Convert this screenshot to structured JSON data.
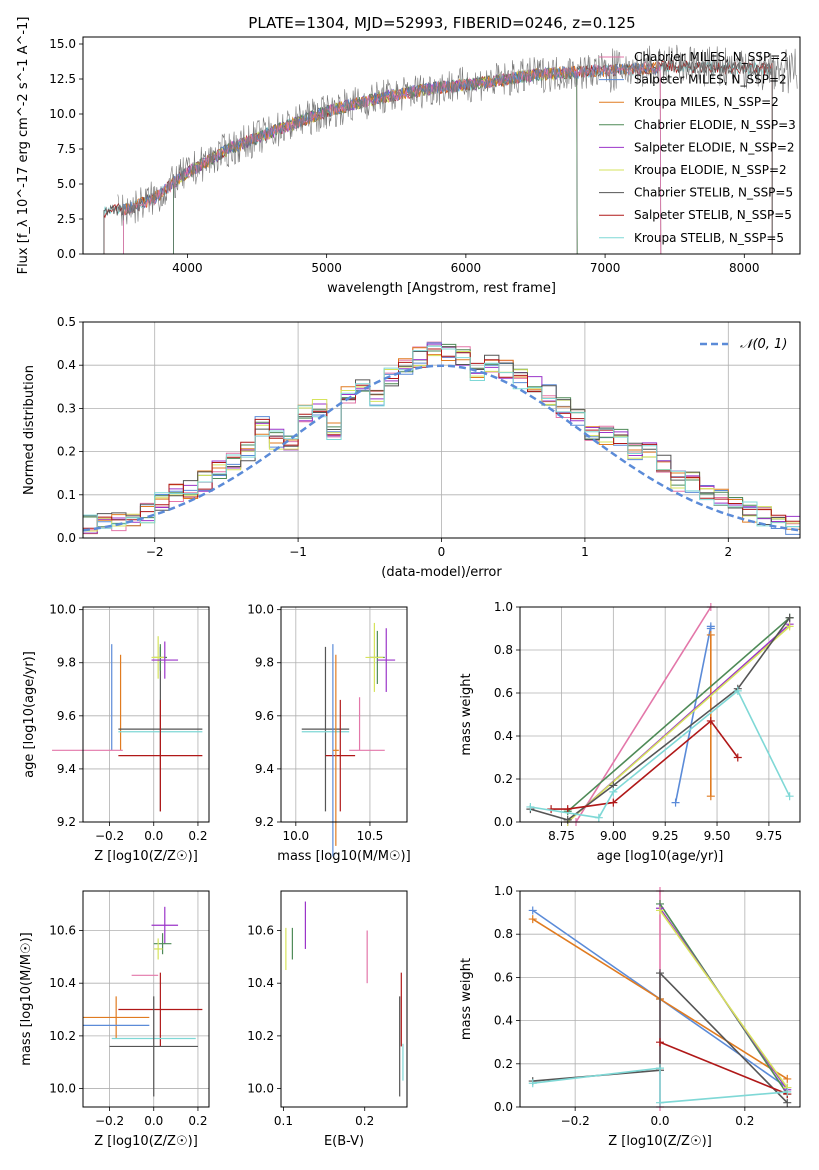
{
  "figure_title": "PLATE=1304, MJD=52993, FIBERID=0246, z=0.125",
  "colors": {
    "Chabrier MILES": "#e377a9",
    "Salpeter MILES": "#5b8bd8",
    "Kroupa MILES": "#e07b20",
    "Chabrier ELODIE": "#4e8a57",
    "Salpeter ELODIE": "#9b35c9",
    "Kroupa ELODIE": "#d6e35c",
    "Chabrier STELIB": "#555555",
    "Salpeter STELIB": "#b01818",
    "Kroupa STELIB": "#7fd8d6",
    "data": "#777777",
    "gauss": "#5b8bd8"
  },
  "chart_data": [
    {
      "type": "line",
      "title": "PLATE=1304, MJD=52993, FIBERID=0246, z=0.125",
      "xlabel": "wavelength [Angstrom, rest frame]",
      "ylabel": "Flux [f_λ 10^-17 erg cm^-2 s^-1 A^-1]",
      "xlim": [
        3250,
        8400
      ],
      "ylim": [
        0,
        15.5
      ],
      "xticks": [
        4000,
        5000,
        6000,
        7000,
        8000
      ],
      "yticks": [
        0.0,
        2.5,
        5.0,
        7.5,
        10.0,
        12.5,
        15.0
      ],
      "grid": false,
      "legend_position": "top-right",
      "legend": [
        "Chabrier MILES, N_SSP=2",
        "Salpeter MILES, N_SSP=2",
        "Kroupa MILES, N_SSP=2",
        "Chabrier ELODIE, N_SSP=3",
        "Salpeter ELODIE, N_SSP=2",
        "Kroupa ELODIE, N_SSP=2",
        "Chabrier STELIB, N_SSP=5",
        "Salpeter STELIB, N_SSP=5",
        "Kroupa STELIB, N_SSP=5"
      ],
      "spectrum_continuum": {
        "x": [
          3400,
          3600,
          3800,
          3950,
          4100,
          4300,
          4600,
          5000,
          5400,
          5800,
          6100,
          6500,
          6800,
          7200,
          7500,
          7800,
          8200
        ],
        "y": [
          3.0,
          3.3,
          4.2,
          5.5,
          6.4,
          7.5,
          8.7,
          10.2,
          11.2,
          11.9,
          12.2,
          12.8,
          13.0,
          13.2,
          13.4,
          13.3,
          13.2
        ]
      }
    },
    {
      "type": "histogram",
      "xlabel": "(data-model)/error",
      "ylabel": "Normed distribution",
      "xlim": [
        -2.5,
        2.5
      ],
      "ylim": [
        0,
        0.5
      ],
      "xticks": [
        -2,
        -1,
        0,
        1,
        2
      ],
      "yticks": [
        0.0,
        0.1,
        0.2,
        0.3,
        0.4,
        0.5
      ],
      "grid": true,
      "legend_position": "top-right",
      "legend": [
        "𝒩(0, 1)"
      ],
      "bin_width": 0.1,
      "bin_start": -2.6,
      "base_hist": [
        0.02,
        0.03,
        0.04,
        0.04,
        0.05,
        0.06,
        0.08,
        0.1,
        0.11,
        0.13,
        0.16,
        0.18,
        0.2,
        0.26,
        0.23,
        0.22,
        0.29,
        0.3,
        0.25,
        0.33,
        0.36,
        0.33,
        0.37,
        0.4,
        0.42,
        0.44,
        0.43,
        0.42,
        0.38,
        0.4,
        0.39,
        0.37,
        0.36,
        0.33,
        0.3,
        0.28,
        0.25,
        0.24,
        0.23,
        0.2,
        0.2,
        0.17,
        0.13,
        0.13,
        0.11,
        0.09,
        0.08,
        0.06,
        0.05,
        0.04,
        0.03,
        0.03
      ]
    },
    {
      "type": "errorbar",
      "xlabel": "Z [log10(Z/Z☉)]",
      "ylabel": "age  [log10(age/yr)]",
      "xlim": [
        -0.32,
        0.25
      ],
      "ylim": [
        9.2,
        10.01
      ],
      "xticks": [
        -0.2,
        0.0,
        0.2
      ],
      "yticks": [
        9.2,
        9.4,
        9.6,
        9.8,
        10.0
      ],
      "grid": true,
      "points": [
        {
          "model": "Salpeter MILES",
          "x": -0.19,
          "xerr": 0.0,
          "y": 9.47,
          "yerr": 0.0,
          "vx": -0.19,
          "vy": [
            9.47,
            9.87
          ]
        },
        {
          "model": "Kroupa MILES",
          "x": -0.15,
          "xerr": 0.0,
          "y": 9.47,
          "yerr": 0.0,
          "vx": -0.15,
          "vy": [
            9.47,
            9.83
          ]
        },
        {
          "model": "Chabrier MILES",
          "x": -0.3,
          "xerr": 0.16,
          "y": 9.47,
          "yerr": 0.0
        },
        {
          "model": "Salpeter MILES",
          "x": -0.13,
          "xerr": 0.0,
          "y": 9.47,
          "yerr": 0.0
        },
        {
          "model": "Chabrier STELIB",
          "x": 0.03,
          "xerr": 0.19,
          "y": 9.55,
          "yerr": 0.31
        },
        {
          "model": "Kroupa STELIB",
          "x": 0.03,
          "xerr": 0.19,
          "y": 9.54,
          "yerr": 0.0
        },
        {
          "model": "Salpeter STELIB",
          "x": 0.03,
          "xerr": 0.19,
          "y": 9.45,
          "yerr": 0.21
        },
        {
          "model": "Chabrier ELODIE",
          "x": 0.03,
          "xerr": 0.03,
          "y": 9.82,
          "yerr": 0.05
        },
        {
          "model": "Kroupa ELODIE",
          "x": 0.02,
          "xerr": 0.03,
          "y": 9.82,
          "yerr": 0.08
        },
        {
          "model": "Salpeter ELODIE",
          "x": 0.05,
          "xerr": 0.06,
          "y": 9.81,
          "yerr": 0.07
        }
      ]
    },
    {
      "type": "errorbar",
      "xlabel": "mass [log10(M/M☉)]",
      "ylabel": "",
      "xlim": [
        9.9,
        10.75
      ],
      "ylim": [
        9.2,
        10.01
      ],
      "xticks": [
        10.0,
        10.5
      ],
      "yticks": [
        9.2,
        9.4,
        9.6,
        9.8,
        10.0
      ],
      "grid": true,
      "points": [
        {
          "model": "Chabrier STELIB",
          "x": 10.2,
          "xerr": 0.16,
          "y": 9.55,
          "yerr": 0.31
        },
        {
          "model": "Kroupa STELIB",
          "x": 10.2,
          "xerr": 0.16,
          "y": 9.54,
          "yerr": 0.0
        },
        {
          "model": "Salpeter STELIB",
          "x": 10.3,
          "xerr": 0.1,
          "y": 9.45,
          "yerr": 0.21
        },
        {
          "model": "Salpeter MILES",
          "x": 10.25,
          "xerr": 0.0,
          "y": 9.47,
          "yerr": 0.4
        },
        {
          "model": "Kroupa MILES",
          "x": 10.27,
          "xerr": 0.02,
          "y": 9.47,
          "yerr": 0.36
        },
        {
          "model": "Chabrier MILES",
          "x": 10.48,
          "xerr": 0.12,
          "y": 9.47,
          "yerr": 0.0
        },
        {
          "model": "Chabrier MILES",
          "x": 10.43,
          "xerr": 0.0,
          "y": 9.57,
          "yerr": 0.1
        },
        {
          "model": "Chabrier ELODIE",
          "x": 10.55,
          "xerr": 0.05,
          "y": 9.82,
          "yerr": 0.1
        },
        {
          "model": "Kroupa ELODIE",
          "x": 10.53,
          "xerr": 0.06,
          "y": 9.82,
          "yerr": 0.13
        },
        {
          "model": "Salpeter ELODIE",
          "x": 10.61,
          "xerr": 0.06,
          "y": 9.81,
          "yerr": 0.12
        }
      ]
    },
    {
      "type": "line",
      "xlabel": "age  [log10(age/yr)]",
      "ylabel": "mass weight",
      "xlim": [
        8.55,
        9.9
      ],
      "ylim": [
        0,
        1.0
      ],
      "xticks": [
        8.75,
        9.0,
        9.25,
        9.5,
        9.75
      ],
      "yticks": [
        0.0,
        0.2,
        0.4,
        0.6,
        0.8,
        1.0
      ],
      "grid": true,
      "series": [
        {
          "model": "Chabrier MILES",
          "x": [
            8.82,
            9.47
          ],
          "y": [
            0.0,
            1.0
          ]
        },
        {
          "model": "Salpeter MILES",
          "x": [
            9.3,
            9.47,
            9.47
          ],
          "y": [
            0.09,
            0.91,
            0.9
          ]
        },
        {
          "model": "Kroupa MILES",
          "x": [
            9.47,
            9.47
          ],
          "y": [
            0.12,
            0.87
          ]
        },
        {
          "model": "Chabrier ELODIE",
          "x": [
            8.78,
            9.85
          ],
          "y": [
            0.05,
            0.95
          ]
        },
        {
          "model": "Salpeter ELODIE",
          "x": [
            8.78,
            9.85
          ],
          "y": [
            0.0,
            0.92
          ]
        },
        {
          "model": "Kroupa ELODIE",
          "x": [
            8.78,
            9.85
          ],
          "y": [
            0.0,
            0.91
          ]
        },
        {
          "model": "Chabrier STELIB",
          "x": [
            8.6,
            8.78,
            9.0,
            9.6,
            9.85
          ],
          "y": [
            0.06,
            0.01,
            0.17,
            0.62,
            0.95
          ]
        },
        {
          "model": "Salpeter STELIB",
          "x": [
            8.7,
            8.78,
            9.0,
            9.47,
            9.6
          ],
          "y": [
            0.06,
            0.06,
            0.09,
            0.47,
            0.3
          ]
        },
        {
          "model": "Kroupa STELIB",
          "x": [
            8.6,
            8.93,
            9.0,
            9.6,
            9.85
          ],
          "y": [
            0.07,
            0.02,
            0.14,
            0.61,
            0.12
          ]
        }
      ]
    },
    {
      "type": "errorbar",
      "xlabel": "Z [log10(Z/Z☉)]",
      "ylabel": "mass [log10(M/M☉)]",
      "xlim": [
        -0.32,
        0.25
      ],
      "ylim": [
        9.93,
        10.75
      ],
      "xticks": [
        -0.2,
        0.0,
        0.2
      ],
      "yticks": [
        10.0,
        10.2,
        10.4,
        10.6
      ],
      "grid": true,
      "points": [
        {
          "model": "Salpeter ELODIE",
          "x": 0.05,
          "xerr": 0.06,
          "y": 10.62,
          "yerr": 0.07
        },
        {
          "model": "Chabrier ELODIE",
          "x": 0.04,
          "xerr": 0.04,
          "y": 10.55,
          "yerr": 0.04
        },
        {
          "model": "Kroupa ELODIE",
          "x": 0.02,
          "xerr": 0.02,
          "y": 10.53,
          "yerr": 0.04
        },
        {
          "model": "Chabrier MILES",
          "x": -0.04,
          "xerr": 0.06,
          "y": 10.43,
          "yerr": 0.0
        },
        {
          "model": "Salpeter STELIB",
          "x": 0.03,
          "xerr": 0.19,
          "y": 10.3,
          "yerr": 0.14
        },
        {
          "model": "Kroupa MILES",
          "x": -0.17,
          "xerr": 0.15,
          "y": 10.27,
          "yerr": 0.08
        },
        {
          "model": "Salpeter MILES",
          "x": -0.17,
          "xerr": 0.15,
          "y": 10.24,
          "yerr": 0.0
        },
        {
          "model": "Kroupa STELIB",
          "x": 0.0,
          "xerr": 0.19,
          "y": 10.19,
          "yerr": 0.0
        },
        {
          "model": "Chabrier STELIB",
          "x": 0.0,
          "xerr": 0.2,
          "y": 10.16,
          "yerr": 0.19
        },
        {
          "model": "Chabrier STELIB",
          "x": 0.0,
          "xerr": 0.0,
          "y": 10.0,
          "yerr": 0.0
        }
      ]
    },
    {
      "type": "errorbar",
      "xlabel": "E(B-V)",
      "ylabel": "",
      "xlim": [
        0.097,
        0.252
      ],
      "ylim": [
        9.93,
        10.75
      ],
      "xticks": [
        0.1,
        0.2
      ],
      "yticks": [
        10.0,
        10.2,
        10.4,
        10.6
      ],
      "grid": false,
      "points": [
        {
          "model": "Kroupa ELODIE",
          "x": 0.103,
          "y": 10.53,
          "yerr": 0.08
        },
        {
          "model": "Chabrier ELODIE",
          "x": 0.111,
          "y": 10.55,
          "yerr": 0.06
        },
        {
          "model": "Salpeter ELODIE",
          "x": 0.127,
          "y": 10.62,
          "yerr": 0.09
        },
        {
          "model": "Chabrier MILES",
          "x": 0.203,
          "y": 10.5,
          "yerr": 0.1
        },
        {
          "model": "Salpeter STELIB",
          "x": 0.245,
          "y": 10.3,
          "yerr": 0.14
        },
        {
          "model": "Chabrier STELIB",
          "x": 0.243,
          "y": 10.16,
          "yerr": 0.19
        },
        {
          "model": "Kroupa STELIB",
          "x": 0.247,
          "y": 10.1,
          "yerr": 0.07
        }
      ]
    },
    {
      "type": "line",
      "xlabel": "Z [log10(Z/Z☉)]",
      "ylabel": "mass weight",
      "xlim": [
        -0.33,
        0.33
      ],
      "ylim": [
        0,
        1.0
      ],
      "xticks": [
        -0.2,
        0.0,
        0.2
      ],
      "yticks": [
        0.0,
        0.2,
        0.4,
        0.6,
        0.8,
        1.0
      ],
      "grid": true,
      "series": [
        {
          "model": "Chabrier MILES",
          "x": [
            0.0,
            0.0
          ],
          "y": [
            0.0,
            1.0
          ]
        },
        {
          "model": "Salpeter MILES",
          "x": [
            -0.3,
            0.0,
            0.3
          ],
          "y": [
            0.91,
            0.5,
            0.09
          ]
        },
        {
          "model": "Kroupa MILES",
          "x": [
            -0.3,
            0.0,
            0.3
          ],
          "y": [
            0.87,
            0.5,
            0.13
          ]
        },
        {
          "model": "Chabrier ELODIE",
          "x": [
            0.0,
            0.3
          ],
          "y": [
            0.94,
            0.06
          ]
        },
        {
          "model": "Salpeter ELODIE",
          "x": [
            0.0,
            0.3
          ],
          "y": [
            0.92,
            0.08
          ]
        },
        {
          "model": "Kroupa ELODIE",
          "x": [
            0.0,
            0.3
          ],
          "y": [
            0.91,
            0.09
          ]
        },
        {
          "model": "Chabrier STELIB",
          "x": [
            -0.3,
            0.0,
            0.0,
            0.3
          ],
          "y": [
            0.12,
            0.17,
            0.62,
            0.02
          ]
        },
        {
          "model": "Salpeter STELIB",
          "x": [
            0.0,
            0.3
          ],
          "y": [
            0.3,
            0.06
          ]
        },
        {
          "model": "Kroupa STELIB",
          "x": [
            -0.3,
            0.0,
            0.0,
            0.3
          ],
          "y": [
            0.11,
            0.18,
            0.02,
            0.07
          ]
        }
      ]
    }
  ]
}
